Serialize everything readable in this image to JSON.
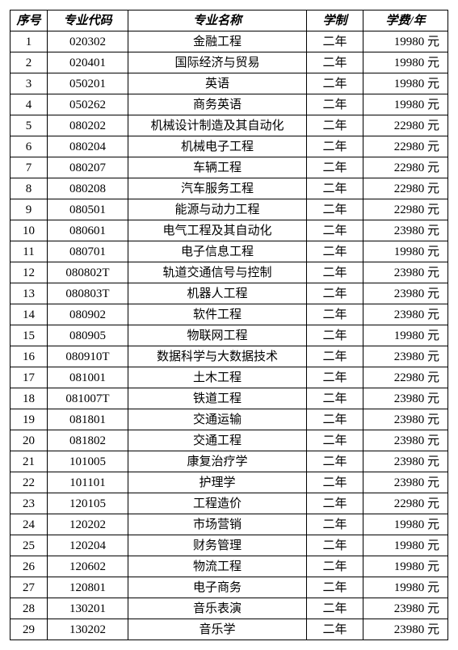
{
  "headers": {
    "idx": "序号",
    "code": "专业代码",
    "name": "专业名称",
    "duration": "学制",
    "fee": "学费/年"
  },
  "currency_unit": "元",
  "rows": [
    {
      "idx": "1",
      "code": "020302",
      "name": "金融工程",
      "duration": "二年",
      "fee": "19980"
    },
    {
      "idx": "2",
      "code": "020401",
      "name": "国际经济与贸易",
      "duration": "二年",
      "fee": "19980"
    },
    {
      "idx": "3",
      "code": "050201",
      "name": "英语",
      "duration": "二年",
      "fee": "19980"
    },
    {
      "idx": "4",
      "code": "050262",
      "name": "商务英语",
      "duration": "二年",
      "fee": "19980"
    },
    {
      "idx": "5",
      "code": "080202",
      "name": "机械设计制造及其自动化",
      "duration": "二年",
      "fee": "22980"
    },
    {
      "idx": "6",
      "code": "080204",
      "name": "机械电子工程",
      "duration": "二年",
      "fee": "22980"
    },
    {
      "idx": "7",
      "code": "080207",
      "name": "车辆工程",
      "duration": "二年",
      "fee": "22980"
    },
    {
      "idx": "8",
      "code": "080208",
      "name": "汽车服务工程",
      "duration": "二年",
      "fee": "22980"
    },
    {
      "idx": "9",
      "code": "080501",
      "name": "能源与动力工程",
      "duration": "二年",
      "fee": "22980"
    },
    {
      "idx": "10",
      "code": "080601",
      "name": "电气工程及其自动化",
      "duration": "二年",
      "fee": "23980"
    },
    {
      "idx": "11",
      "code": "080701",
      "name": "电子信息工程",
      "duration": "二年",
      "fee": "19980"
    },
    {
      "idx": "12",
      "code": "080802T",
      "name": "轨道交通信号与控制",
      "duration": "二年",
      "fee": "23980"
    },
    {
      "idx": "13",
      "code": "080803T",
      "name": "机器人工程",
      "duration": "二年",
      "fee": "23980"
    },
    {
      "idx": "14",
      "code": "080902",
      "name": "软件工程",
      "duration": "二年",
      "fee": "23980"
    },
    {
      "idx": "15",
      "code": "080905",
      "name": "物联网工程",
      "duration": "二年",
      "fee": "19980"
    },
    {
      "idx": "16",
      "code": "080910T",
      "name": "数据科学与大数据技术",
      "duration": "二年",
      "fee": "23980"
    },
    {
      "idx": "17",
      "code": "081001",
      "name": "土木工程",
      "duration": "二年",
      "fee": "22980"
    },
    {
      "idx": "18",
      "code": "081007T",
      "name": "铁道工程",
      "duration": "二年",
      "fee": "23980"
    },
    {
      "idx": "19",
      "code": "081801",
      "name": "交通运输",
      "duration": "二年",
      "fee": "23980"
    },
    {
      "idx": "20",
      "code": "081802",
      "name": "交通工程",
      "duration": "二年",
      "fee": "23980"
    },
    {
      "idx": "21",
      "code": "101005",
      "name": "康复治疗学",
      "duration": "二年",
      "fee": "23980"
    },
    {
      "idx": "22",
      "code": "101101",
      "name": "护理学",
      "duration": "二年",
      "fee": "23980"
    },
    {
      "idx": "23",
      "code": "120105",
      "name": "工程造价",
      "duration": "二年",
      "fee": "22980"
    },
    {
      "idx": "24",
      "code": "120202",
      "name": "市场营销",
      "duration": "二年",
      "fee": "19980"
    },
    {
      "idx": "25",
      "code": "120204",
      "name": "财务管理",
      "duration": "二年",
      "fee": "19980"
    },
    {
      "idx": "26",
      "code": "120602",
      "name": "物流工程",
      "duration": "二年",
      "fee": "19980"
    },
    {
      "idx": "27",
      "code": "120801",
      "name": "电子商务",
      "duration": "二年",
      "fee": "19980"
    },
    {
      "idx": "28",
      "code": "130201",
      "name": "音乐表演",
      "duration": "二年",
      "fee": "23980"
    },
    {
      "idx": "29",
      "code": "130202",
      "name": "音乐学",
      "duration": "二年",
      "fee": "23980"
    }
  ]
}
